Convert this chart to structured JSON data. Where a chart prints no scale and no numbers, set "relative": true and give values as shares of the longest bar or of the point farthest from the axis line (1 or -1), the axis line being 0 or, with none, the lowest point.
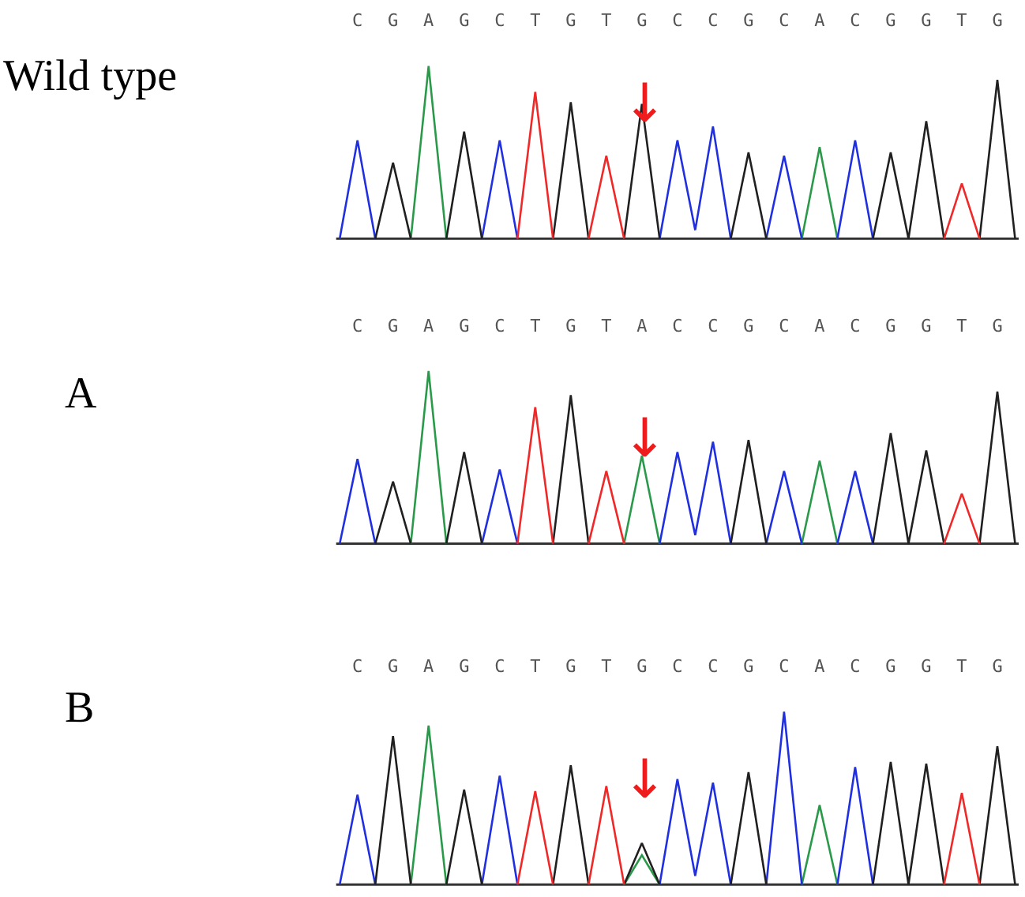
{
  "chart_data": [
    {
      "type": "line",
      "title": "Wild type",
      "relative": true,
      "grid": false,
      "categories": [
        null,
        "C",
        null,
        "G",
        null,
        "A",
        null,
        "G",
        null,
        "C",
        null,
        "T",
        null,
        "G",
        null,
        "T",
        null,
        "G",
        null,
        "C",
        null,
        "C",
        null,
        "G",
        null,
        "C",
        null,
        "A",
        null,
        "C",
        null,
        "G",
        null,
        "G",
        null,
        "T",
        null,
        "G",
        null
      ],
      "annotations": [
        "↓"
      ],
      "series": [
        {
          "color": "#2a9a4a",
          "values": [
            null,
            null,
            null,
            null,
            0,
            1,
            0,
            null,
            null,
            null,
            null,
            null,
            null,
            null,
            null,
            null,
            null,
            null,
            null,
            null,
            null,
            null,
            null,
            null,
            null,
            null,
            0,
            0.53,
            0,
            null,
            null,
            null,
            null,
            null,
            null,
            null,
            null,
            null,
            null
          ]
        },
        {
          "color": "#2030e0",
          "values": [
            0,
            0.57,
            0,
            null,
            null,
            null,
            null,
            null,
            0,
            0.57,
            0,
            null,
            null,
            null,
            null,
            null,
            null,
            null,
            0,
            0.57,
            0.05,
            0.65,
            0,
            null,
            0,
            0.48,
            0,
            null,
            0,
            0.57,
            0,
            null,
            null,
            null,
            null,
            null,
            null,
            null,
            null
          ]
        },
        {
          "color": "#202020",
          "values": [
            null,
            null,
            0,
            0.44,
            0,
            null,
            0,
            0.62,
            0,
            null,
            null,
            null,
            0,
            0.79,
            0,
            null,
            0,
            0.78,
            0,
            null,
            null,
            null,
            0,
            0.5,
            0,
            null,
            null,
            null,
            null,
            null,
            0,
            0.5,
            0,
            0.68,
            0,
            null,
            0,
            0.92,
            0
          ]
        },
        {
          "color": "#f02828",
          "values": [
            null,
            null,
            null,
            null,
            null,
            null,
            null,
            null,
            null,
            null,
            0,
            0.85,
            0,
            null,
            0,
            0.48,
            0,
            null,
            null,
            null,
            null,
            null,
            null,
            null,
            null,
            null,
            null,
            null,
            null,
            null,
            null,
            null,
            null,
            null,
            0,
            0.32,
            0,
            null,
            null
          ]
        }
      ]
    },
    {
      "type": "line",
      "title": "A",
      "relative": true,
      "grid": false,
      "categories": [
        null,
        "C",
        null,
        "G",
        null,
        "A",
        null,
        "G",
        null,
        "C",
        null,
        "T",
        null,
        "G",
        null,
        "T",
        null,
        "A",
        null,
        "C",
        null,
        "C",
        null,
        "G",
        null,
        "C",
        null,
        "A",
        null,
        "C",
        null,
        "G",
        null,
        "G",
        null,
        "T",
        null,
        "G",
        null
      ],
      "annotations": [
        "↓"
      ],
      "series": [
        {
          "color": "#2a9a4a",
          "values": [
            null,
            null,
            null,
            null,
            0,
            1,
            0,
            null,
            null,
            null,
            null,
            null,
            null,
            null,
            null,
            null,
            0,
            0.51,
            0,
            null,
            null,
            null,
            null,
            null,
            null,
            null,
            0,
            0.48,
            0,
            null,
            null,
            null,
            null,
            null,
            null,
            null,
            null,
            null,
            null
          ]
        },
        {
          "color": "#2030e0",
          "values": [
            0,
            0.49,
            0,
            null,
            null,
            null,
            null,
            null,
            0,
            0.43,
            0,
            null,
            null,
            null,
            null,
            null,
            null,
            null,
            0,
            0.53,
            0.05,
            0.59,
            0,
            null,
            0,
            0.42,
            0,
            null,
            0,
            0.42,
            0,
            null,
            null,
            null,
            null,
            null,
            null,
            null,
            null
          ]
        },
        {
          "color": "#202020",
          "values": [
            null,
            null,
            0,
            0.36,
            0,
            null,
            0,
            0.53,
            0,
            null,
            null,
            null,
            0,
            0.86,
            0,
            null,
            null,
            null,
            null,
            null,
            null,
            null,
            0,
            0.6,
            0,
            null,
            null,
            null,
            null,
            null,
            0,
            0.64,
            0,
            0.54,
            0,
            null,
            0,
            0.88,
            0
          ]
        },
        {
          "color": "#f02828",
          "values": [
            null,
            null,
            null,
            null,
            null,
            null,
            null,
            null,
            null,
            null,
            0,
            0.79,
            0,
            null,
            0,
            0.42,
            0,
            null,
            null,
            null,
            null,
            null,
            null,
            null,
            null,
            null,
            null,
            null,
            null,
            null,
            null,
            null,
            null,
            null,
            0,
            0.29,
            0,
            null,
            null
          ]
        }
      ]
    },
    {
      "type": "line",
      "title": "B",
      "relative": true,
      "grid": false,
      "categories": [
        null,
        "C",
        null,
        "G",
        null,
        "A",
        null,
        "G",
        null,
        "C",
        null,
        "T",
        null,
        "G",
        null,
        "T",
        null,
        "G",
        null,
        "C",
        null,
        "C",
        null,
        "G",
        null,
        "C",
        null,
        "A",
        null,
        "C",
        null,
        "G",
        null,
        "G",
        null,
        "T",
        null,
        "G",
        null
      ],
      "annotations": [
        "↓"
      ],
      "series": [
        {
          "color": "#2a9a4a",
          "values": [
            null,
            null,
            null,
            null,
            0,
            0.92,
            0,
            null,
            null,
            null,
            null,
            null,
            null,
            null,
            null,
            null,
            0,
            0.17,
            0,
            null,
            null,
            null,
            null,
            null,
            null,
            null,
            0,
            0.46,
            0,
            null,
            null,
            null,
            null,
            null,
            null,
            null,
            null,
            null,
            null
          ]
        },
        {
          "color": "#2030e0",
          "values": [
            0,
            0.52,
            0,
            null,
            null,
            null,
            null,
            null,
            0,
            0.63,
            0,
            null,
            null,
            null,
            null,
            null,
            null,
            null,
            0,
            0.61,
            0.05,
            0.59,
            0,
            null,
            0,
            1,
            0,
            null,
            0,
            0.68,
            0,
            null,
            null,
            null,
            null,
            null,
            null,
            null,
            null
          ]
        },
        {
          "color": "#202020",
          "values": [
            null,
            null,
            0,
            0.86,
            0,
            null,
            0,
            0.55,
            0,
            null,
            null,
            null,
            0,
            0.69,
            0,
            null,
            0,
            0.24,
            0,
            null,
            null,
            null,
            0,
            0.65,
            0,
            null,
            null,
            null,
            null,
            null,
            0,
            0.71,
            0,
            0.7,
            0,
            null,
            0,
            0.8,
            0
          ]
        },
        {
          "color": "#f02828",
          "values": [
            null,
            null,
            null,
            null,
            null,
            null,
            null,
            null,
            null,
            null,
            0,
            0.54,
            0,
            null,
            0,
            0.57,
            0,
            null,
            null,
            null,
            null,
            null,
            null,
            null,
            null,
            null,
            null,
            null,
            null,
            null,
            null,
            null,
            null,
            null,
            0,
            0.53,
            0,
            null,
            null
          ]
        }
      ]
    }
  ]
}
